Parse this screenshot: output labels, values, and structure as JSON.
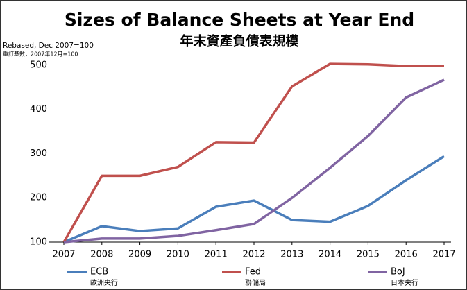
{
  "chart_data": {
    "type": "line",
    "title": "Sizes of Balance Sheets at Year End",
    "subtitle": "年末資產負債表規模",
    "y_label": "Rebased, Dec 2007=100",
    "y_label_zh": "重訂基數，2007年12月=100",
    "x": [
      2007,
      2008,
      2009,
      2010,
      2011,
      2012,
      2013,
      2014,
      2015,
      2016,
      2017
    ],
    "xlim": [
      2007,
      2017
    ],
    "xticks": [
      2007,
      2008,
      2009,
      2010,
      2011,
      2012,
      2013,
      2014,
      2015,
      2016,
      2017
    ],
    "ylim": [
      100,
      510
    ],
    "yticks": [
      100,
      200,
      300,
      400,
      500
    ],
    "grid": false,
    "series": [
      {
        "name": "ECB",
        "name_zh": "歐洲央行",
        "color": "#4a7ebb",
        "values": [
          100,
          136,
          125,
          131,
          180,
          194,
          150,
          146,
          182,
          240,
          294
        ]
      },
      {
        "name": "Fed",
        "name_zh": "聯儲局",
        "color": "#c0504d",
        "values": [
          100,
          250,
          250,
          270,
          326,
          325,
          452,
          503,
          502,
          498,
          498
        ]
      },
      {
        "name": "BoJ",
        "name_zh": "日本央行",
        "color": "#8064a2",
        "values": [
          100,
          108,
          108,
          114,
          127,
          141,
          200,
          268,
          340,
          427,
          467
        ]
      }
    ]
  }
}
